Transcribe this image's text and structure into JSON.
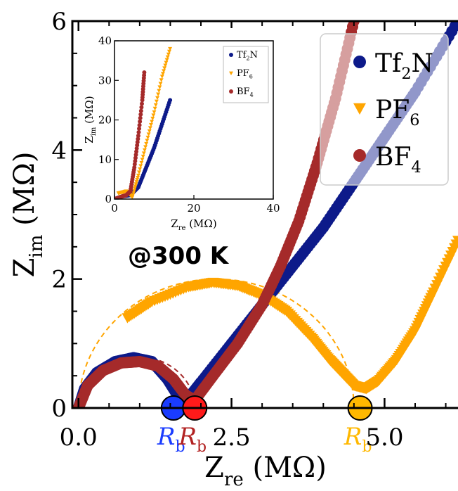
{
  "chart_data": [
    {
      "type": "scatter",
      "xlabel_main": "Z",
      "xlabel_sub": "re",
      "xlabel_unit": "(MΩ)",
      "ylabel_main": "Z",
      "ylabel_sub": "im",
      "ylabel_unit": "(MΩ)",
      "xlim": [
        -0.1,
        6.2
      ],
      "ylim": [
        0,
        6
      ],
      "xticks": [
        0.0,
        2.5,
        5.0
      ],
      "xtick_labels": [
        "0.0",
        "2.5",
        "5.0"
      ],
      "yticks": [
        0,
        2,
        4,
        6
      ],
      "ytick_labels": [
        "0",
        "2",
        "4",
        "6"
      ],
      "annotation": "@300 K",
      "rb_label_main": "R",
      "rb_label_sub": "b",
      "legend_position": "top-right",
      "grid": false,
      "series": [
        {
          "name_main": "Tf",
          "name_sub": "2",
          "name_tail": "N",
          "color": "#0d1a8a",
          "marker": "circle",
          "rb": 1.55,
          "rb_marker_color": "#1a3cff",
          "rb_label_color": "#1a3cff",
          "points": [
            [
              0.0,
              0.0
            ],
            [
              0.1,
              0.3
            ],
            [
              0.3,
              0.55
            ],
            [
              0.6,
              0.72
            ],
            [
              0.9,
              0.78
            ],
            [
              1.2,
              0.72
            ],
            [
              1.45,
              0.45
            ],
            [
              1.65,
              0.15
            ],
            [
              1.75,
              0.1
            ],
            [
              2.0,
              0.4
            ],
            [
              2.5,
              1.0
            ],
            [
              3.0,
              1.6
            ],
            [
              3.5,
              2.2
            ],
            [
              4.0,
              2.8
            ],
            [
              4.5,
              3.5
            ],
            [
              5.0,
              4.2
            ],
            [
              5.5,
              4.9
            ],
            [
              6.2,
              6.0
            ]
          ],
          "fit_arc": [
            0.0,
            1.6,
            0.8
          ]
        },
        {
          "name_main": "PF",
          "name_sub": "6",
          "name_tail": "",
          "color": "#ffa500",
          "marker": "triangle-down",
          "rb": 4.6,
          "rb_marker_color": "#ffb800",
          "rb_label_color": "#ffb800",
          "points": [
            [
              0.8,
              1.4
            ],
            [
              1.2,
              1.65
            ],
            [
              1.8,
              1.88
            ],
            [
              2.2,
              1.95
            ],
            [
              2.6,
              1.9
            ],
            [
              3.0,
              1.75
            ],
            [
              3.4,
              1.5
            ],
            [
              3.8,
              1.1
            ],
            [
              4.1,
              0.75
            ],
            [
              4.3,
              0.55
            ],
            [
              4.5,
              0.35
            ],
            [
              4.7,
              0.3
            ],
            [
              4.9,
              0.42
            ],
            [
              5.2,
              0.75
            ],
            [
              5.5,
              1.2
            ],
            [
              5.8,
              1.8
            ],
            [
              6.2,
              2.6
            ]
          ],
          "fit_arc": [
            0.0,
            4.5,
            2.0
          ]
        },
        {
          "name_main": "BF",
          "name_sub": "4",
          "name_tail": "",
          "color": "#a52a2a",
          "marker": "circle",
          "rb": 1.9,
          "rb_marker_color": "#ff1a1a",
          "rb_label_color": "#b22222",
          "points": [
            [
              0.0,
              0.0
            ],
            [
              0.15,
              0.35
            ],
            [
              0.4,
              0.58
            ],
            [
              0.7,
              0.7
            ],
            [
              1.0,
              0.72
            ],
            [
              1.3,
              0.65
            ],
            [
              1.55,
              0.45
            ],
            [
              1.75,
              0.2
            ],
            [
              1.9,
              0.12
            ],
            [
              2.2,
              0.5
            ],
            [
              2.6,
              1.0
            ],
            [
              3.0,
              1.6
            ],
            [
              3.3,
              2.2
            ],
            [
              3.6,
              2.9
            ],
            [
              3.9,
              3.8
            ],
            [
              4.2,
              4.8
            ],
            [
              4.5,
              6.0
            ]
          ],
          "fit_arc": [
            0.0,
            1.9,
            0.8
          ]
        }
      ]
    },
    {
      "type": "scatter",
      "inset": true,
      "xlabel_main": "Z",
      "xlabel_sub": "re",
      "xlabel_unit": "(MΩ)",
      "ylabel_main": "Z",
      "ylabel_sub": "im",
      "ylabel_unit": "(MΩ)",
      "xlim": [
        0,
        40
      ],
      "ylim": [
        0,
        40
      ],
      "xticks": [
        0,
        20,
        40
      ],
      "xtick_labels": [
        "0",
        "20",
        "40"
      ],
      "yticks": [
        0,
        10,
        20,
        30,
        40
      ],
      "ytick_labels": [
        "0",
        "10",
        "20",
        "30",
        "40"
      ],
      "series": [
        {
          "name_main": "Tf",
          "name_sub": "2",
          "name_tail": "N",
          "color": "#0d1a8a",
          "marker": "circle",
          "points": [
            [
              0,
              0
            ],
            [
              2,
              0.7
            ],
            [
              4,
              1
            ],
            [
              6,
              3
            ],
            [
              8,
              8
            ],
            [
              10,
              13
            ],
            [
              12,
              19
            ],
            [
              14,
              25
            ]
          ]
        },
        {
          "name_main": "PF",
          "name_sub": "6",
          "name_tail": "",
          "color": "#ffa500",
          "marker": "triangle-down",
          "points": [
            [
              1,
              1.5
            ],
            [
              3,
              2
            ],
            [
              4.5,
              0.5
            ],
            [
              6,
              6
            ],
            [
              8,
              14
            ],
            [
              10,
              22
            ],
            [
              12,
              31
            ],
            [
              14,
              38
            ]
          ]
        },
        {
          "name_main": "BF",
          "name_sub": "4",
          "name_tail": "",
          "color": "#a52a2a",
          "marker": "circle",
          "points": [
            [
              0,
              0
            ],
            [
              2,
              0.7
            ],
            [
              3,
              1
            ],
            [
              4,
              2
            ],
            [
              5,
              8
            ],
            [
              6,
              16
            ],
            [
              7,
              25
            ],
            [
              7.5,
              32
            ]
          ]
        }
      ]
    }
  ]
}
